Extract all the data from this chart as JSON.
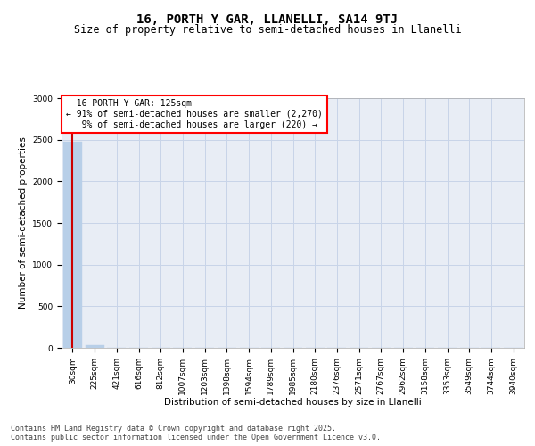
{
  "title": "16, PORTH Y GAR, LLANELLI, SA14 9TJ",
  "subtitle": "Size of property relative to semi-detached houses in Llanelli",
  "xlabel": "Distribution of semi-detached houses by size in Llanelli",
  "ylabel": "Number of semi-detached properties",
  "property_label": "16 PORTH Y GAR: 125sqm",
  "pct_smaller": 91,
  "pct_larger": 9,
  "n_smaller": 2270,
  "n_larger": 220,
  "bin_labels": [
    "30sqm",
    "225sqm",
    "421sqm",
    "616sqm",
    "812sqm",
    "1007sqm",
    "1203sqm",
    "1398sqm",
    "1594sqm",
    "1789sqm",
    "1985sqm",
    "2180sqm",
    "2376sqm",
    "2571sqm",
    "2767sqm",
    "2962sqm",
    "3158sqm",
    "3353sqm",
    "3549sqm",
    "3744sqm",
    "3940sqm"
  ],
  "bar_values": [
    2480,
    35,
    2,
    1,
    1,
    0,
    0,
    0,
    0,
    0,
    0,
    0,
    0,
    0,
    0,
    0,
    0,
    0,
    0,
    0,
    0
  ],
  "bar_color": "#b8cfe8",
  "marker_color": "#cc0000",
  "grid_color": "#c8d4e8",
  "background_color": "#e8edf5",
  "ylim": [
    0,
    3000
  ],
  "yticks": [
    0,
    500,
    1000,
    1500,
    2000,
    2500,
    3000
  ],
  "title_fontsize": 10,
  "subtitle_fontsize": 8.5,
  "axis_label_fontsize": 7.5,
  "tick_fontsize": 6.5,
  "annotation_fontsize": 7,
  "footer_fontsize": 6
}
